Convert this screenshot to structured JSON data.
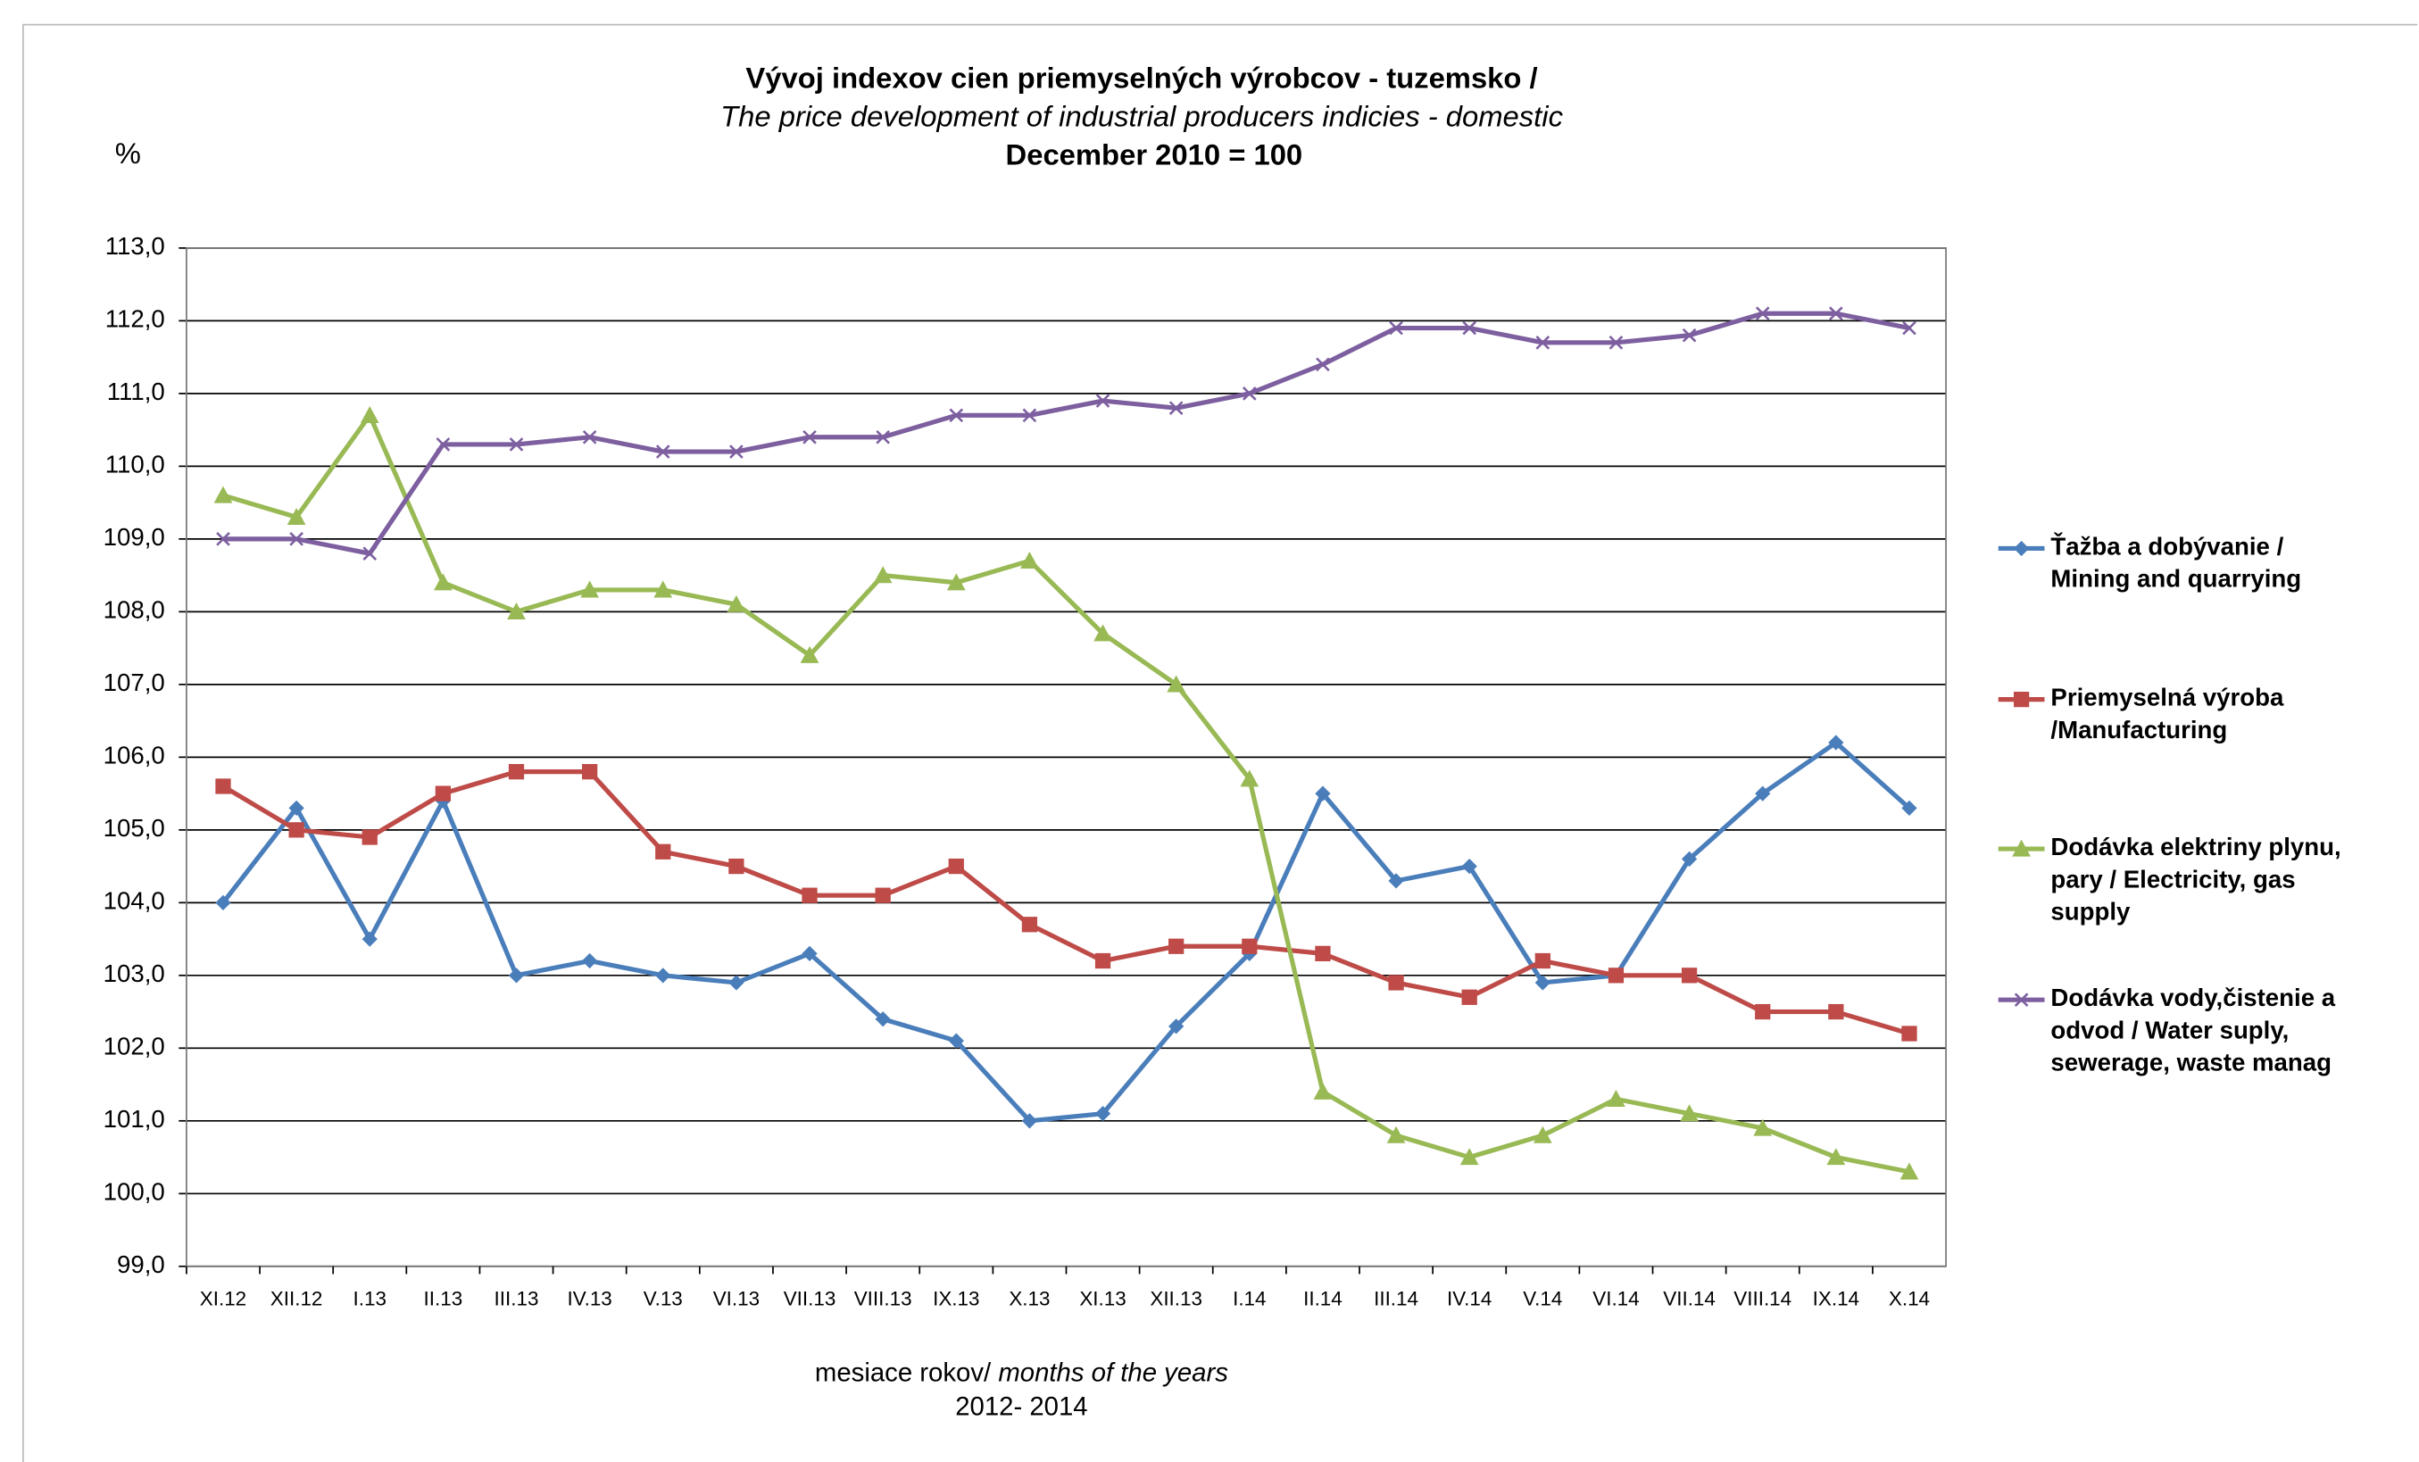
{
  "chart_data": {
    "type": "line",
    "title": "Vývoj indexov cien priemyselných výrobcov - tuzemsko /",
    "subtitle": "The price development of industrial producers indicies - domestic",
    "base_note": "December 2010 = 100",
    "y_label": "%",
    "x_label": {
      "plain": "mesiace rokov/",
      "italic": "months of the years",
      "years": "2012- 2014"
    },
    "categories": [
      "XI.12",
      "XII.12",
      "I.13",
      "II.13",
      "III.13",
      "IV.13",
      "V.13",
      "VI.13",
      "VII.13",
      "VIII.13",
      "IX.13",
      "X.13",
      "XI.13",
      "XII.13",
      "I.14",
      "II.14",
      "III.14",
      "IV.14",
      "V.14",
      "VI.14",
      "VII.14",
      "VIII.14",
      "IX.14",
      "X.14"
    ],
    "series": [
      {
        "name": "Ťažba a dobývanie /\nMining and quarrying",
        "color": "#4a7ebb",
        "marker": "diamond",
        "values": [
          104.0,
          105.3,
          103.5,
          105.4,
          103.0,
          103.2,
          103.0,
          102.9,
          103.3,
          102.4,
          102.1,
          101.0,
          101.1,
          102.3,
          103.3,
          105.5,
          104.3,
          104.5,
          102.9,
          103.0,
          104.6,
          105.5,
          106.2,
          105.3
        ]
      },
      {
        "name": "Priemyselná výroba\n/Manufacturing",
        "color": "#be4b48",
        "marker": "square",
        "values": [
          105.6,
          105.0,
          104.9,
          105.5,
          105.8,
          105.8,
          104.7,
          104.5,
          104.1,
          104.1,
          104.5,
          103.7,
          103.2,
          103.4,
          103.4,
          103.3,
          102.9,
          102.7,
          103.2,
          103.0,
          103.0,
          102.5,
          102.5,
          102.2
        ]
      },
      {
        "name": "Dodávka elektriny plynu,\npary / Electricity, gas\nsupply",
        "color": "#98b954",
        "marker": "triangle",
        "values": [
          109.6,
          109.3,
          110.7,
          108.4,
          108.0,
          108.3,
          108.3,
          108.1,
          107.4,
          108.5,
          108.4,
          108.7,
          107.7,
          107.0,
          105.7,
          101.4,
          100.8,
          100.5,
          100.8,
          101.3,
          101.1,
          100.9,
          100.5,
          100.3
        ]
      },
      {
        "name": "Dodávka vody,čistenie a\nodvod / Water suply,\nsewerage, waste manag",
        "color": "#7d5fa0",
        "marker": "x",
        "values": [
          109.0,
          109.0,
          108.8,
          110.3,
          110.3,
          110.4,
          110.2,
          110.2,
          110.4,
          110.4,
          110.7,
          110.7,
          110.9,
          110.8,
          111.0,
          111.4,
          111.9,
          111.9,
          111.7,
          111.7,
          111.8,
          112.1,
          112.1,
          111.9
        ]
      }
    ],
    "ylim": [
      99,
      113
    ],
    "yticks": [
      {
        "value": 99,
        "label": "99,0"
      },
      {
        "value": 100,
        "label": "100,0"
      },
      {
        "value": 101,
        "label": "101,0"
      },
      {
        "value": 102,
        "label": "102,0"
      },
      {
        "value": 103,
        "label": "103,0"
      },
      {
        "value": 104,
        "label": "104,0"
      },
      {
        "value": 105,
        "label": "105,0"
      },
      {
        "value": 106,
        "label": "106,0"
      },
      {
        "value": 107,
        "label": "107,0"
      },
      {
        "value": 108,
        "label": "108,0"
      },
      {
        "value": 109,
        "label": "109,0"
      },
      {
        "value": 110,
        "label": "110,0"
      },
      {
        "value": 111,
        "label": "111,0"
      },
      {
        "value": 112,
        "label": "112,0"
      },
      {
        "value": 113,
        "label": "113,0"
      }
    ],
    "grid": true,
    "legend": "right"
  }
}
